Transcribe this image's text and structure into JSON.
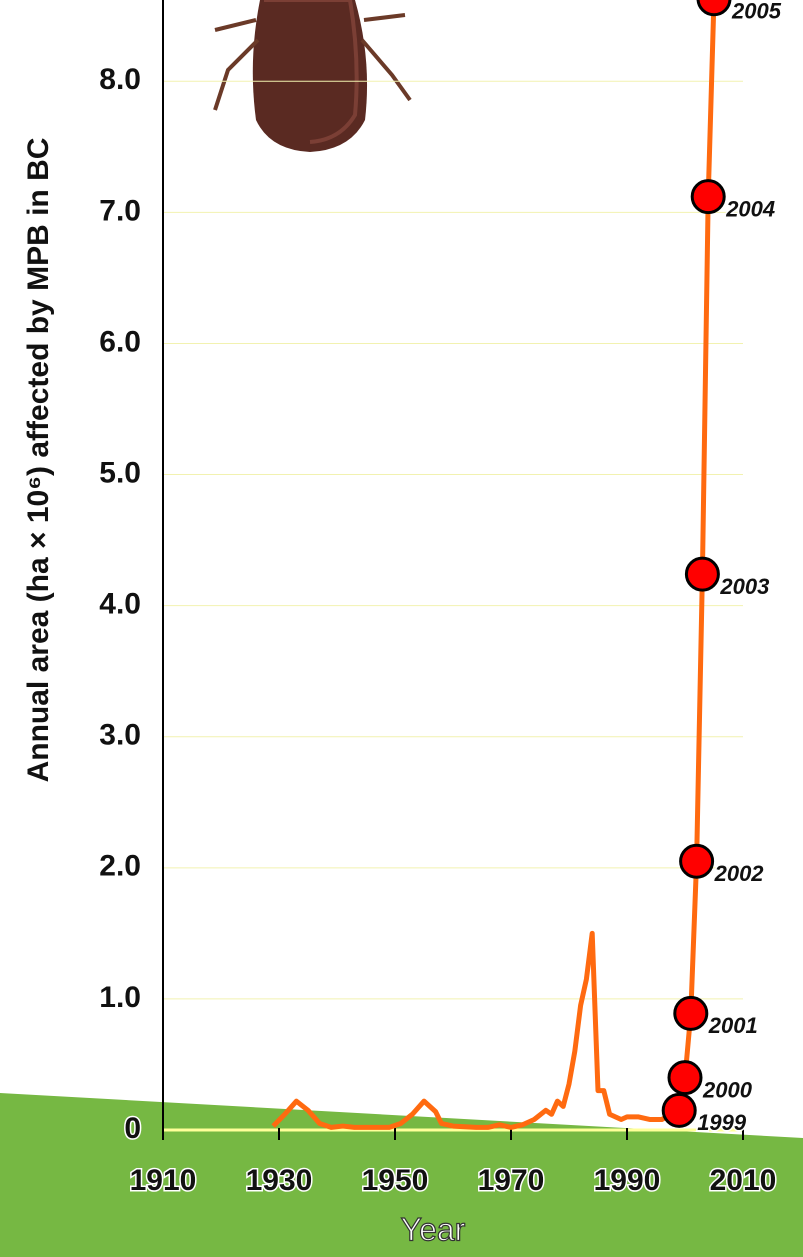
{
  "chart_data": {
    "type": "line",
    "ylabel": "Annual area (ha × 10⁶) affected by MPB in BC",
    "xlabel": "Year",
    "xlim": [
      1910,
      2010
    ],
    "xticks": [
      1910,
      1930,
      1950,
      1970,
      1990,
      2010
    ],
    "ylim": [
      0,
      8.62
    ],
    "yticks": [
      0,
      {
        "value": 1,
        "label": "1.0"
      },
      {
        "value": 2,
        "label": "2.0"
      },
      {
        "value": 3,
        "label": "3.0"
      },
      {
        "value": 4,
        "label": "4.0"
      },
      {
        "value": 5,
        "label": "5.0"
      },
      {
        "value": 6,
        "label": "6.0"
      },
      {
        "value": 7,
        "label": "7.0"
      },
      {
        "value": 8,
        "label": "8.0"
      }
    ],
    "grid": true,
    "series": [
      {
        "color": "#ff6a10",
        "marker_color": "#ff0000",
        "x": [
          1929,
          1931,
          1933,
          1935,
          1937,
          1939,
          1941,
          1943,
          1947,
          1949,
          1951,
          1953,
          1955,
          1957,
          1958,
          1960,
          1964,
          1966,
          1968,
          1970,
          1972,
          1974,
          1976,
          1977,
          1978,
          1979,
          1980,
          1981,
          1982,
          1983,
          1984,
          1985,
          1986,
          1987,
          1988,
          1989,
          1990,
          1992,
          1994,
          1996,
          1999,
          2000,
          2001,
          2002,
          2003,
          2004,
          2005
        ],
        "values": [
          0.03,
          0.12,
          0.22,
          0.15,
          0.05,
          0.02,
          0.03,
          0.02,
          0.02,
          0.02,
          0.05,
          0.12,
          0.22,
          0.14,
          0.05,
          0.03,
          0.02,
          0.02,
          0.04,
          0.02,
          0.04,
          0.08,
          0.15,
          0.12,
          0.22,
          0.18,
          0.35,
          0.6,
          0.95,
          1.15,
          1.5,
          0.3,
          0.3,
          0.12,
          0.1,
          0.08,
          0.1,
          0.1,
          0.08,
          0.08,
          0.15,
          0.4,
          0.89,
          2.05,
          4.24,
          7.12,
          8.63
        ],
        "labels": [
          null,
          null,
          null,
          null,
          null,
          null,
          null,
          null,
          null,
          null,
          null,
          null,
          null,
          null,
          null,
          null,
          null,
          null,
          null,
          null,
          null,
          null,
          null,
          null,
          null,
          null,
          null,
          null,
          null,
          null,
          null,
          null,
          null,
          null,
          null,
          null,
          null,
          null,
          null,
          null,
          "1999",
          "2000",
          "2001",
          "2002",
          "2003",
          "2004",
          "2005"
        ]
      }
    ]
  }
}
